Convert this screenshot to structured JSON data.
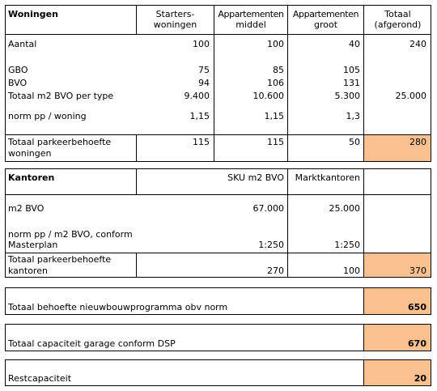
{
  "woningen": {
    "title": "Woningen",
    "headers": {
      "starters_1": "Starters-",
      "starters_2": "woningen",
      "app_middel_1": "Appartementen",
      "app_middel_2": "middel",
      "app_groot_1": "Appartementen",
      "app_groot_2": "groot",
      "totaal_1": "Totaal",
      "totaal_2": "(afgerond)"
    },
    "rows": {
      "aantal": {
        "label": "Aantal",
        "v1": "100",
        "v2": "100",
        "v3": "40",
        "total": "240"
      },
      "gbo": {
        "label": "GBO",
        "v1": "75",
        "v2": "85",
        "v3": "105"
      },
      "bvo": {
        "label": "BVO",
        "v1": "94",
        "v2": "106",
        "v3": "131"
      },
      "totaal_m2": {
        "label": "Totaal  m2 BVO per type",
        "v1": "9.400",
        "v2": "10.600",
        "v3": "5.300",
        "total": "25.000"
      },
      "norm": {
        "label": "norm pp / woning",
        "v1": "1,15",
        "v2": "1,15",
        "v3": "1,3"
      }
    },
    "total_row": {
      "label_1": "Totaal parkeerbehoefte",
      "label_2": "woningen",
      "v1": "115",
      "v2": "115",
      "v3": "50",
      "total": "280"
    }
  },
  "kantoren": {
    "title": "Kantoren",
    "headers": {
      "sku": "SKU m2 BVO",
      "markt": "Marktkantoren"
    },
    "rows": {
      "m2": {
        "label": "m2 BVO",
        "sku": "67.000",
        "markt": "25.000"
      },
      "norm": {
        "label_1": "norm pp / m2 BVO, conform",
        "label_2": "Masterplan",
        "sku": "1:250",
        "markt": "1:250"
      }
    },
    "total_row": {
      "label_1": "Totaal parkeerbehoefte",
      "label_2": "kantoren",
      "sku": "270",
      "markt": "100",
      "total": "370"
    }
  },
  "summary": {
    "behoefte": {
      "label": "Totaal behoefte nieuwbouwprogramma obv norm",
      "value": "650"
    },
    "capaciteit": {
      "label": "Totaal capaciteit garage conform DSP",
      "value": "670"
    },
    "rest": {
      "label": "Restcapaciteit",
      "value": "20"
    }
  },
  "colors": {
    "highlight": "#fac090",
    "border": "#000000"
  }
}
